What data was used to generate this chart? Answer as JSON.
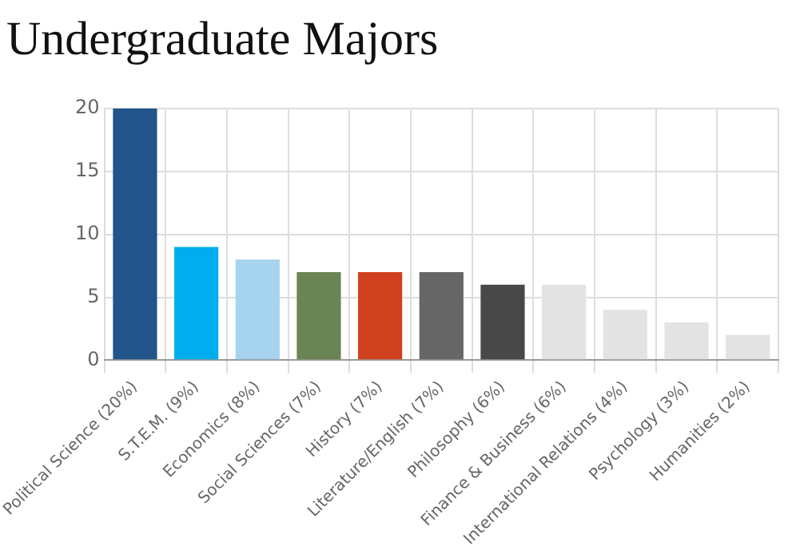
{
  "chart_data": {
    "type": "bar",
    "title": "Undergraduate Majors",
    "categories": [
      "Political Science (20%)",
      "S.T.E.M. (9%)",
      "Economics (8%)",
      "Social Sciences (7%)",
      "History (7%)",
      "Literature/English (7%)",
      "Philosophy (6%)",
      "Finance & Business (6%)",
      "International Relations (4%)",
      "Psychology (3%)",
      "Humanities (2%)"
    ],
    "values": [
      20,
      9,
      8,
      7,
      7,
      7,
      6,
      6,
      4,
      3,
      2
    ],
    "colors": [
      "#21558b",
      "#00adee",
      "#a6d4ee",
      "#6b8454",
      "#cf401e",
      "#666666",
      "#484848",
      "#e3e3e3",
      "#e3e3e3",
      "#e3e3e3",
      "#e3e3e3"
    ],
    "ylim": [
      0,
      20
    ],
    "yticks": [
      0,
      5,
      10,
      15,
      20
    ],
    "grid": true
  }
}
